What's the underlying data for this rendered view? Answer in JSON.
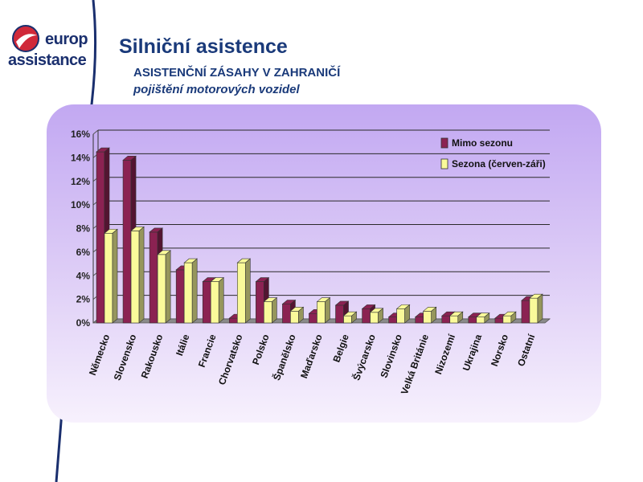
{
  "logo": {
    "line1": "europ",
    "line2": "assistance"
  },
  "header": {
    "title": "Silniční asistence",
    "subtitle": "ASISTENČNÍ ZÁSAHY V ZAHRANIČÍ",
    "subtitle2": "pojištění motorových vozidel"
  },
  "colors": {
    "offseason": "#8b2252",
    "season": "#fafa9a",
    "accent": "#1a3a7a",
    "logo_red": "#d0293a"
  },
  "chart_data": {
    "type": "bar",
    "title": "",
    "xlabel": "",
    "ylabel": "",
    "ylim": [
      0,
      16
    ],
    "yticks": [
      "0%",
      "2%",
      "4%",
      "6%",
      "8%",
      "10%",
      "12%",
      "14%",
      "16%"
    ],
    "grid": true,
    "legend_position": "top-right",
    "categories": [
      "Německo",
      "Slovensko",
      "Rakousko",
      "Itálie",
      "Francie",
      "Chorvatsko",
      "Polsko",
      "Španělsko",
      "Maďarsko",
      "Belgie",
      "Švýcarsko",
      "Slovinsko",
      "Velká Británie",
      "Nizozemí",
      "Ukrajina",
      "Norsko",
      "Ostatní"
    ],
    "series": [
      {
        "name": "Mimo sezonu",
        "color": "#8b2252",
        "values": [
          14.5,
          13.8,
          7.7,
          4.5,
          3.5,
          0.4,
          3.5,
          1.6,
          0.8,
          1.5,
          1.2,
          0.5,
          0.5,
          0.6,
          0.5,
          0.4,
          1.9
        ]
      },
      {
        "name": "Sezona (červen-záři)",
        "color": "#fafa9a",
        "values": [
          7.6,
          7.8,
          5.8,
          5.1,
          3.5,
          5.1,
          1.8,
          1.0,
          1.8,
          0.6,
          0.9,
          1.2,
          1.0,
          0.6,
          0.5,
          0.6,
          2.1
        ]
      }
    ]
  }
}
